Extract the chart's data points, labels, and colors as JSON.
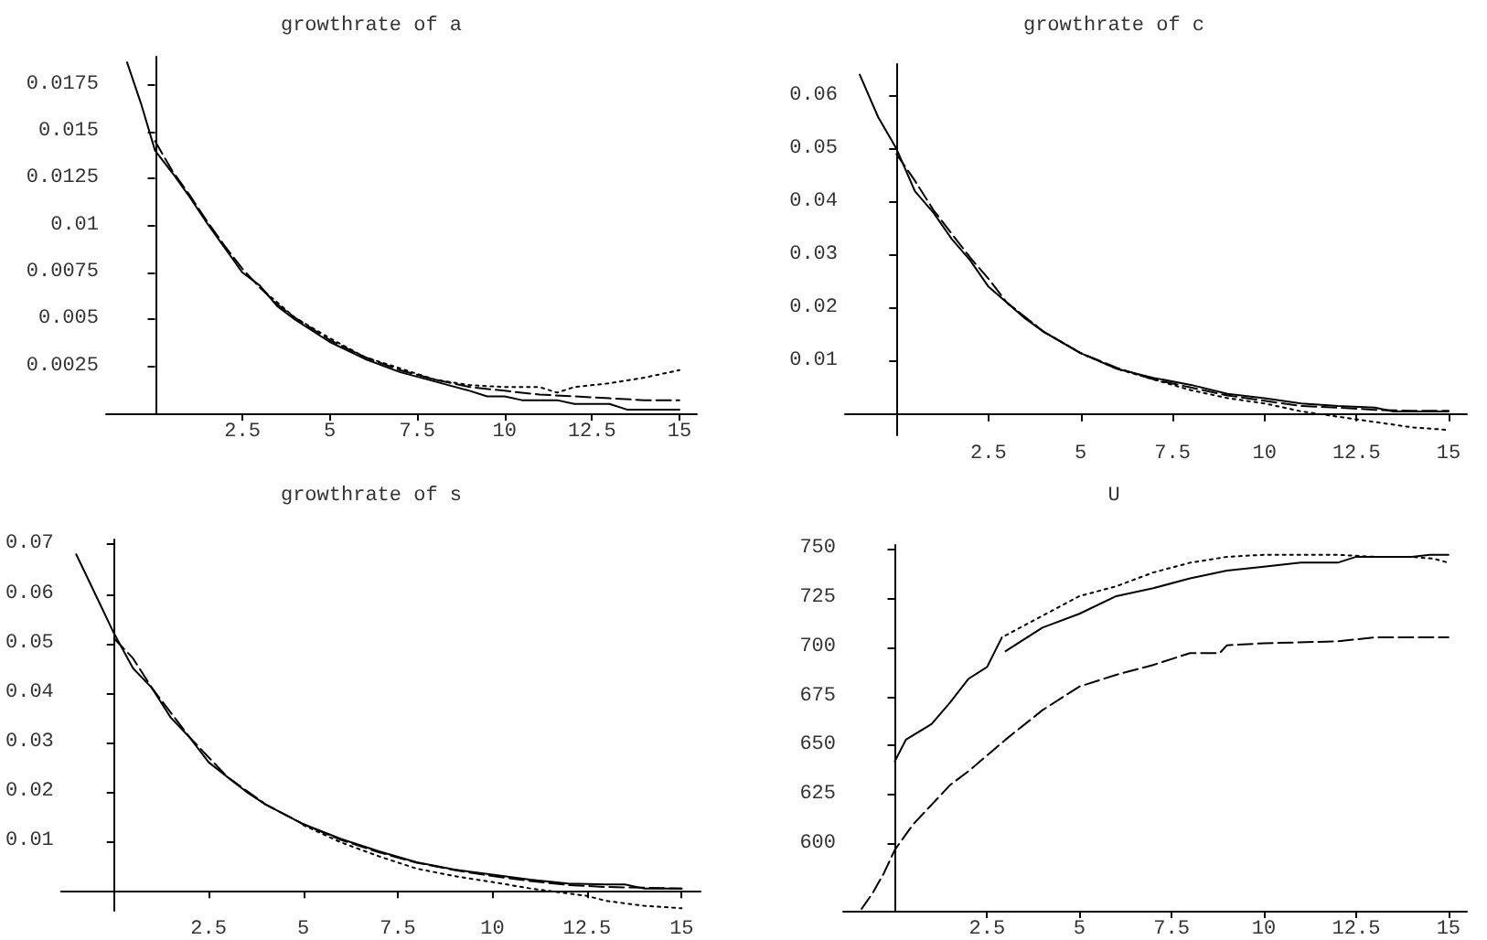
{
  "chart_data": [
    {
      "type": "line",
      "title": "growthrate of a",
      "xlim": [
        -1.4,
        15.5
      ],
      "ylim": [
        0,
        0.019
      ],
      "xticks": [
        2.5,
        5,
        7.5,
        10,
        12.5,
        15
      ],
      "yticks": [
        0.0025,
        0.005,
        0.0075,
        0.01,
        0.0125,
        0.015,
        0.0175
      ],
      "marker": "none",
      "series": [
        {
          "color": "#000000",
          "line_style": "solid",
          "x": [
            -0.8,
            -0.4,
            0,
            0.5,
            1,
            1.5,
            2,
            2.5,
            3,
            3.5,
            4,
            5,
            6,
            7,
            8,
            9,
            9.5,
            10,
            10.5,
            11.5,
            12,
            13,
            13.5,
            15
          ],
          "values": [
            0.0187,
            0.0165,
            0.014,
            0.0128,
            0.0115,
            0.0101,
            0.0088,
            0.0075,
            0.0068,
            0.0057,
            0.005,
            0.0038,
            0.0029,
            0.0022,
            0.0017,
            0.0012,
            0.0009,
            0.0009,
            0.0007,
            0.0007,
            0.0005,
            0.0005,
            0.0002,
            0.0002
          ]
        },
        {
          "color": "#000000",
          "line_style": "dashed",
          "x": [
            0,
            0.5,
            1,
            1.5,
            2,
            2.5,
            3,
            3.5,
            4,
            5,
            6,
            7,
            8,
            9,
            10,
            11,
            12,
            13,
            14,
            15
          ],
          "values": [
            0.0145,
            0.0129,
            0.0116,
            0.0102,
            0.0089,
            0.0077,
            0.0067,
            0.0058,
            0.0051,
            0.0039,
            0.003,
            0.0023,
            0.0018,
            0.0014,
            0.0012,
            0.001,
            0.0009,
            0.0008,
            0.0007,
            0.0007
          ]
        },
        {
          "color": "#000000",
          "line_style": "dotted",
          "x": [
            3,
            4,
            5,
            6,
            7,
            8,
            9,
            10,
            11,
            11.5,
            12,
            13,
            14,
            15
          ],
          "values": [
            0.0067,
            0.0051,
            0.004,
            0.003,
            0.0024,
            0.0018,
            0.0015,
            0.0014,
            0.0014,
            0.0011,
            0.0014,
            0.0016,
            0.0019,
            0.0023
          ]
        }
      ]
    },
    {
      "type": "line",
      "title": "growthrate of c",
      "xlim": [
        -1.4,
        15.5
      ],
      "ylim": [
        -0.004,
        0.066
      ],
      "xticks": [
        2.5,
        5,
        7.5,
        10,
        12.5,
        15
      ],
      "yticks": [
        0.01,
        0.02,
        0.03,
        0.04,
        0.05,
        0.06
      ],
      "marker": "none",
      "series": [
        {
          "color": "#000000",
          "line_style": "solid",
          "x": [
            -1,
            -0.5,
            0,
            0.5,
            1,
            1.5,
            2,
            2.5,
            3,
            3.5,
            4,
            5,
            6,
            7,
            8,
            9,
            10,
            11,
            12,
            13,
            13.5,
            15
          ],
          "values": [
            0.064,
            0.056,
            0.05,
            0.042,
            0.038,
            0.033,
            0.029,
            0.024,
            0.021,
            0.018,
            0.0155,
            0.0115,
            0.0085,
            0.0068,
            0.0055,
            0.0038,
            0.003,
            0.002,
            0.0015,
            0.0012,
            0.0005,
            0.0005
          ]
        },
        {
          "color": "#000000",
          "line_style": "dashed",
          "x": [
            0,
            0.5,
            1,
            1.5,
            2,
            2.5,
            3,
            4,
            5,
            6,
            7,
            8,
            9,
            10,
            11,
            12,
            13,
            14,
            15
          ],
          "values": [
            0.049,
            0.044,
            0.0385,
            0.034,
            0.0295,
            0.0255,
            0.021,
            0.0155,
            0.0115,
            0.0087,
            0.0065,
            0.005,
            0.0035,
            0.0025,
            0.0015,
            0.0012,
            0.0008,
            0.0006,
            0.0006
          ]
        },
        {
          "color": "#000000",
          "line_style": "dotted",
          "x": [
            3,
            4,
            5,
            6,
            7,
            8,
            9,
            10,
            11,
            12,
            12.5,
            13,
            14,
            15
          ],
          "values": [
            0.021,
            0.0155,
            0.0115,
            0.0085,
            0.0065,
            0.0045,
            0.003,
            0.002,
            0.0005,
            -0.0005,
            -0.001,
            -0.0015,
            -0.0025,
            -0.003
          ]
        }
      ]
    },
    {
      "type": "line",
      "title": "growthrate of s",
      "xlim": [
        -1.4,
        15.5
      ],
      "ylim": [
        -0.004,
        0.071
      ],
      "xticks": [
        2.5,
        5,
        7.5,
        10,
        12.5,
        15
      ],
      "yticks": [
        0.01,
        0.02,
        0.03,
        0.04,
        0.05,
        0.06,
        0.07
      ],
      "marker": "none",
      "series": [
        {
          "color": "#000000",
          "line_style": "solid",
          "x": [
            -1,
            -0.5,
            0,
            0.5,
            1,
            1.5,
            2,
            2.5,
            3,
            3.5,
            4,
            5,
            6,
            7,
            8,
            9,
            10,
            11,
            12,
            13,
            13.5,
            14,
            15
          ],
          "values": [
            0.068,
            0.06,
            0.052,
            0.045,
            0.041,
            0.035,
            0.031,
            0.026,
            0.023,
            0.02,
            0.0175,
            0.0135,
            0.0105,
            0.008,
            0.0058,
            0.0043,
            0.0033,
            0.0023,
            0.0015,
            0.0013,
            0.0013,
            0.0005,
            0.0005
          ]
        },
        {
          "color": "#000000",
          "line_style": "dashed",
          "x": [
            0,
            0.5,
            1,
            1.5,
            2,
            2.5,
            3,
            4,
            5,
            6,
            7,
            8,
            9,
            10,
            11,
            12,
            13,
            15
          ],
          "values": [
            0.051,
            0.047,
            0.041,
            0.036,
            0.031,
            0.027,
            0.023,
            0.0175,
            0.0135,
            0.0103,
            0.0078,
            0.0057,
            0.0042,
            0.003,
            0.002,
            0.0012,
            0.0008,
            0.0005
          ]
        },
        {
          "color": "#000000",
          "line_style": "dotted",
          "x": [
            5,
            6,
            7,
            8,
            9,
            10,
            11,
            12,
            12.5,
            13,
            14,
            15
          ],
          "values": [
            0.0133,
            0.0098,
            0.007,
            0.0045,
            0.003,
            0.0018,
            0.0005,
            -0.0005,
            -0.001,
            -0.002,
            -0.003,
            -0.0035
          ]
        }
      ]
    },
    {
      "type": "line",
      "title": "U",
      "xlim": [
        -1.4,
        15.5
      ],
      "ylim": [
        566,
        752
      ],
      "xticks": [
        2.5,
        5,
        7.5,
        10,
        12.5,
        15
      ],
      "yticks": [
        600,
        625,
        650,
        675,
        700,
        725,
        750
      ],
      "marker": "none",
      "series": [
        {
          "color": "#000000",
          "line_style": "solid",
          "x": [
            0,
            0.3,
            1,
            1.5,
            2,
            2.5,
            2.9,
            2.95,
            3,
            4,
            5,
            6,
            7,
            8,
            9,
            10,
            11,
            12,
            12.5,
            14,
            14.5,
            15
          ],
          "values": [
            642,
            653,
            661,
            672,
            684,
            690,
            705,
            null,
            698,
            710,
            717,
            726,
            730,
            735,
            739,
            741,
            743,
            743,
            746,
            746,
            747,
            747
          ]
        },
        {
          "color": "#000000",
          "line_style": "dashed",
          "x": [
            -0.9,
            -0.6,
            -0.3,
            0,
            0.5,
            1,
            1.5,
            2,
            3,
            4,
            5,
            6,
            7,
            8,
            8.8,
            9,
            10,
            12,
            13,
            15
          ],
          "values": [
            567,
            575,
            585,
            597,
            610,
            620,
            630,
            637,
            653,
            668,
            680,
            686,
            691,
            697,
            697,
            701,
            702,
            703,
            705,
            705
          ]
        },
        {
          "color": "#000000",
          "line_style": "dotted",
          "x": [
            3,
            4,
            5,
            6,
            7,
            8,
            9,
            10,
            12,
            13,
            14,
            14.6,
            15
          ],
          "values": [
            706,
            716,
            726,
            731,
            738,
            743,
            746,
            747,
            747,
            746,
            746,
            745,
            743
          ]
        }
      ]
    }
  ]
}
